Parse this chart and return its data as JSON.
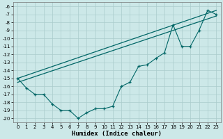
{
  "title": "",
  "xlabel": "Humidex (Indice chaleur)",
  "ylabel": "",
  "background_color": "#cce8e8",
  "grid_color": "#aacccc",
  "line_color": "#006666",
  "xlim": [
    -0.5,
    23.5
  ],
  "ylim": [
    -20.5,
    -5.5
  ],
  "xticks": [
    0,
    1,
    2,
    3,
    4,
    5,
    6,
    7,
    8,
    9,
    10,
    11,
    12,
    13,
    14,
    15,
    16,
    17,
    18,
    19,
    20,
    21,
    22,
    23
  ],
  "yticks": [
    -20,
    -19,
    -18,
    -17,
    -16,
    -15,
    -14,
    -13,
    -12,
    -11,
    -10,
    -9,
    -8,
    -7,
    -6
  ],
  "x_data": [
    0,
    1,
    2,
    3,
    4,
    5,
    6,
    7,
    8,
    9,
    10,
    11,
    12,
    13,
    14,
    15,
    16,
    17,
    18,
    19,
    20,
    21,
    22,
    23
  ],
  "y_main": [
    -15.0,
    -16.2,
    -17.0,
    -17.0,
    -18.2,
    -19.0,
    -19.0,
    -20.0,
    -19.3,
    -18.8,
    -18.8,
    -18.5,
    -16.0,
    -15.5,
    -13.5,
    -13.3,
    -12.5,
    -11.8,
    -8.3,
    -11.0,
    -11.0,
    -9.0,
    -6.5,
    -7.0
  ],
  "y_line1_x": [
    0,
    23
  ],
  "y_line1_y": [
    -15.0,
    -6.5
  ],
  "y_line2_x": [
    0,
    23
  ],
  "y_line2_y": [
    -15.5,
    -7.2
  ]
}
